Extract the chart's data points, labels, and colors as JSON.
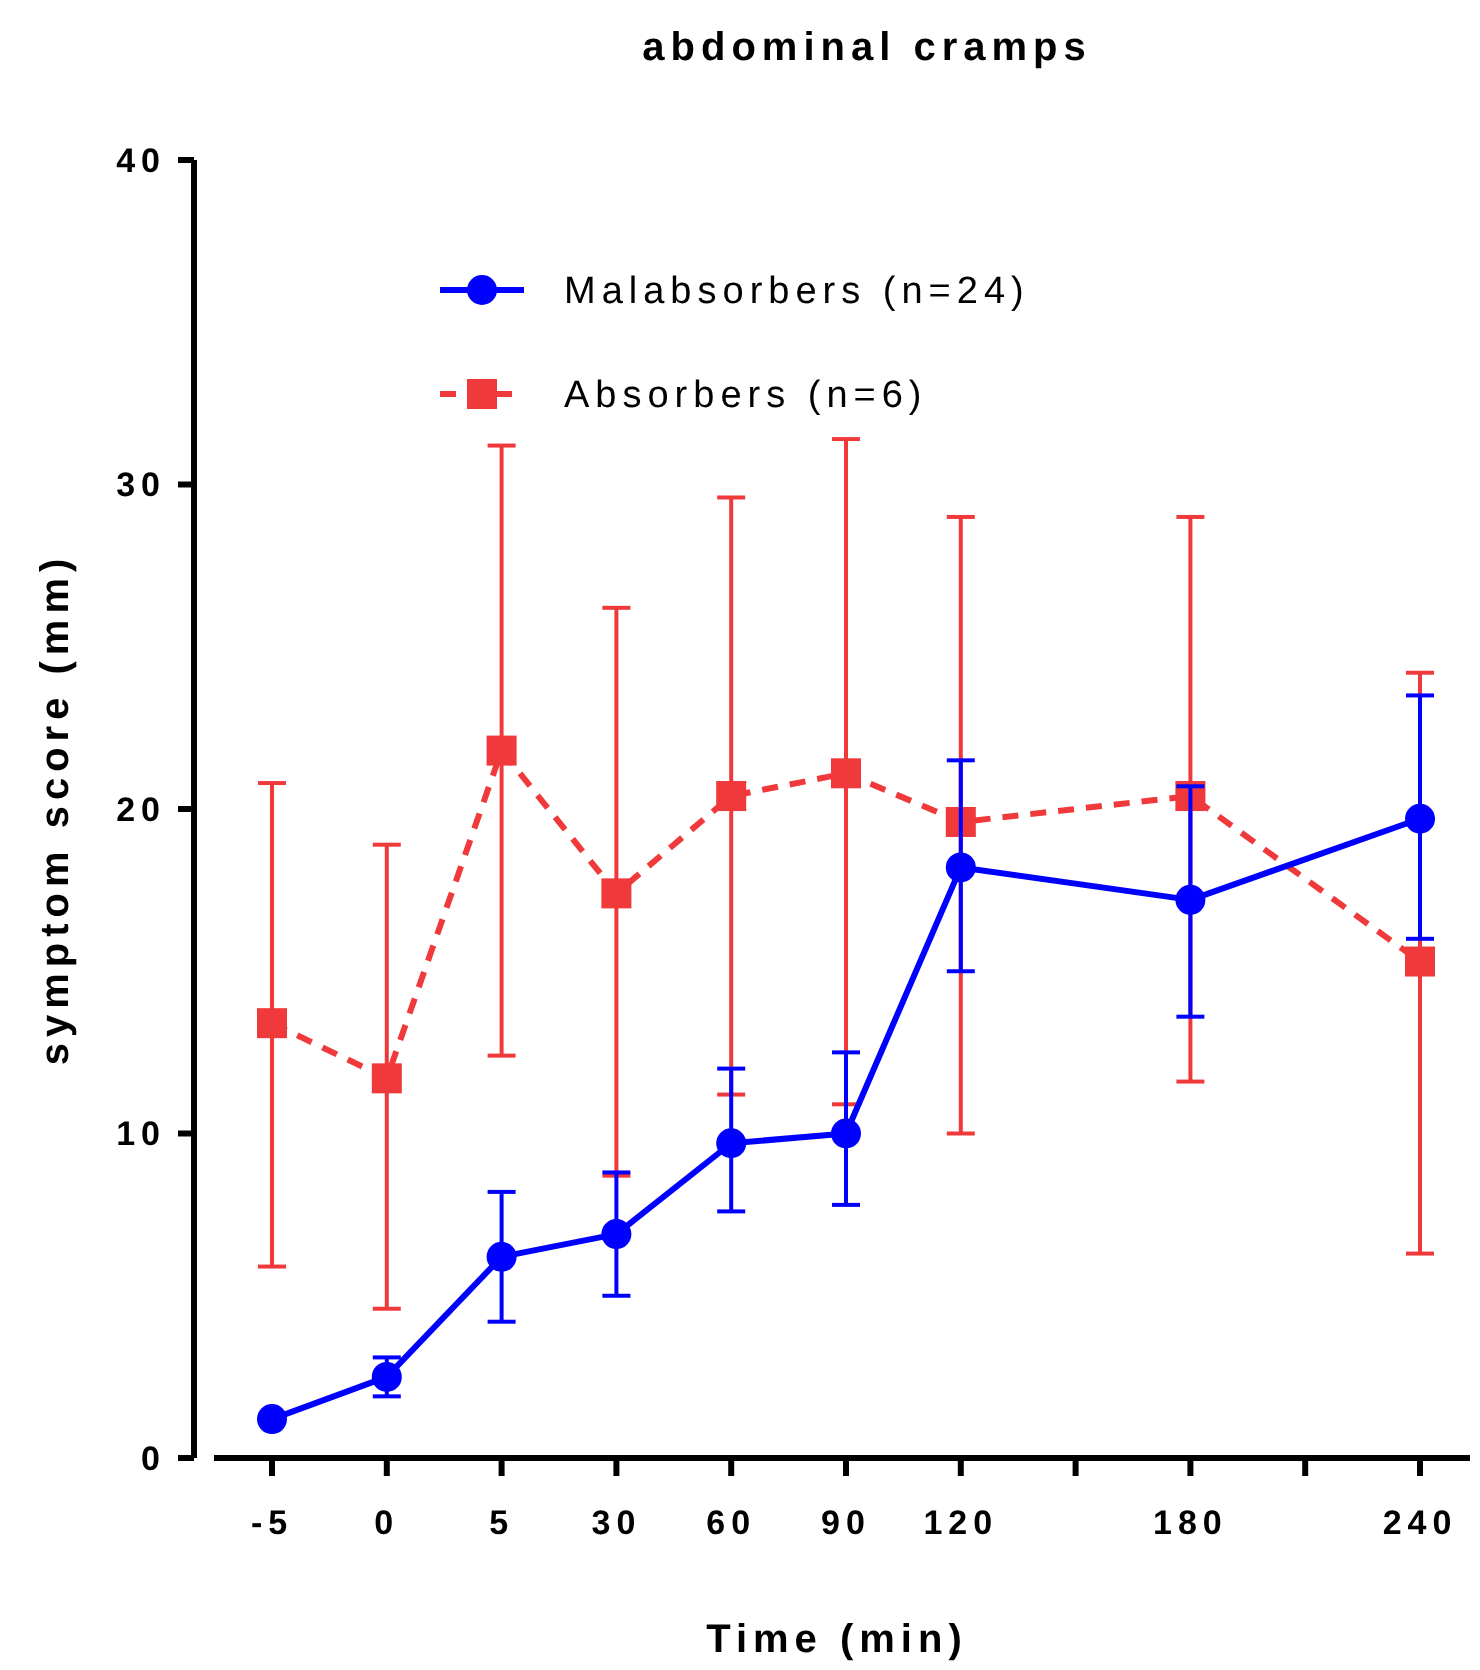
{
  "chart_data": {
    "type": "line",
    "title": "abdominal cramps",
    "xlabel": "Time (min)",
    "ylabel": "symptom score (mm)",
    "categories": [
      "-5",
      "0",
      "5",
      "30",
      "60",
      "90",
      "120",
      null,
      "180",
      null,
      "240"
    ],
    "ylim": [
      0,
      40
    ],
    "yticks": [
      0,
      10,
      20,
      30,
      40
    ],
    "grid": false,
    "legend": "top left",
    "series": [
      {
        "name": "Malabsorbers (n=24)",
        "color": "#0000ff",
        "marker": "circle",
        "line_style": "solid",
        "values": [
          1.2,
          2.5,
          6.2,
          6.9,
          9.7,
          10.0,
          18.2,
          null,
          17.2,
          null,
          19.7
        ],
        "errors": [
          null,
          [
            1.9,
            3.1
          ],
          [
            4.2,
            8.2
          ],
          [
            5.0,
            8.8
          ],
          [
            7.6,
            12.0
          ],
          [
            7.8,
            12.5
          ],
          [
            15.0,
            21.5
          ],
          null,
          [
            13.6,
            20.7
          ],
          null,
          [
            16.0,
            23.5
          ]
        ]
      },
      {
        "name": "Absorbers (n=6)",
        "color": "#f0393b",
        "marker": "square",
        "line_style": "dashed",
        "values": [
          13.4,
          11.7,
          21.8,
          17.4,
          20.4,
          21.1,
          19.6,
          null,
          20.4,
          null,
          15.3
        ],
        "errors": [
          [
            5.9,
            20.8
          ],
          [
            4.6,
            18.9
          ],
          [
            12.4,
            31.2
          ],
          [
            8.7,
            26.2
          ],
          [
            11.2,
            29.6
          ],
          [
            10.9,
            31.4
          ],
          [
            10.0,
            29.0
          ],
          null,
          [
            11.6,
            29.0
          ],
          null,
          [
            6.3,
            24.2
          ]
        ]
      }
    ]
  }
}
